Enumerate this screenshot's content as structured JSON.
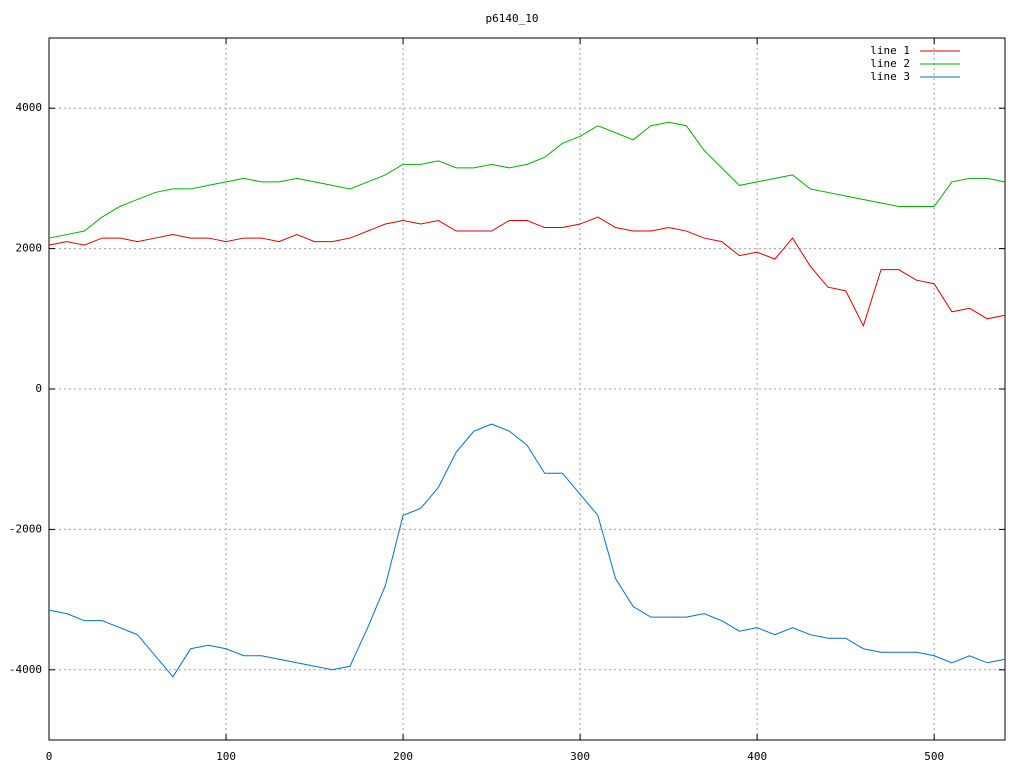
{
  "chart_data": {
    "type": "line",
    "title": "p6140_10",
    "x": [
      0,
      10,
      20,
      30,
      40,
      50,
      60,
      70,
      80,
      90,
      100,
      110,
      120,
      130,
      140,
      150,
      160,
      170,
      180,
      190,
      200,
      210,
      220,
      230,
      240,
      250,
      260,
      270,
      280,
      290,
      300,
      310,
      320,
      330,
      340,
      350,
      360,
      370,
      380,
      390,
      400,
      410,
      420,
      430,
      440,
      450,
      460,
      470,
      480,
      490,
      500,
      510,
      520,
      530,
      540
    ],
    "series": [
      {
        "name": "line 1",
        "color": "#e00000",
        "values": [
          2050,
          2100,
          2050,
          2150,
          2150,
          2100,
          2150,
          2200,
          2150,
          2150,
          2100,
          2150,
          2150,
          2100,
          2200,
          2100,
          2100,
          2150,
          2250,
          2350,
          2400,
          2350,
          2400,
          2250,
          2250,
          2250,
          2400,
          2400,
          2300,
          2300,
          2350,
          2450,
          2300,
          2250,
          2250,
          2300,
          2250,
          2150,
          2100,
          1900,
          1950,
          1850,
          2150,
          1750,
          1450,
          1400,
          900,
          1700,
          1700,
          1550,
          1500,
          1100,
          1150,
          1000,
          1050
        ]
      },
      {
        "name": "line 2",
        "color": "#00b000",
        "values": [
          2150,
          2200,
          2250,
          2450,
          2600,
          2700,
          2800,
          2850,
          2850,
          2900,
          2950,
          3000,
          2950,
          2950,
          3000,
          2950,
          2900,
          2850,
          2950,
          3050,
          3200,
          3200,
          3250,
          3150,
          3150,
          3200,
          3150,
          3200,
          3300,
          3500,
          3600,
          3750,
          3650,
          3550,
          3750,
          3800,
          3750,
          3400,
          3150,
          2900,
          2950,
          3000,
          3050,
          2850,
          2800,
          2750,
          2700,
          2650,
          2600,
          2600,
          2600,
          2950,
          3000,
          3000,
          2950
        ]
      },
      {
        "name": "line 3",
        "color": "#0070d0",
        "values": [
          -3150,
          -3200,
          -3300,
          -3300,
          -3400,
          -3500,
          -3800,
          -4100,
          -3700,
          -3650,
          -3700,
          -3800,
          -3800,
          -3850,
          -3900,
          -3950,
          -4000,
          -3950,
          -3400,
          -2800,
          -1800,
          -1700,
          -1400,
          -900,
          -600,
          -500,
          -600,
          -800,
          -1200,
          -1200,
          -1500,
          -1800,
          -2700,
          -3100,
          -3250,
          -3250,
          -3250,
          -3200,
          -3300,
          -3450,
          -3400,
          -3500,
          -3400,
          -3500,
          -3550,
          -3550,
          -3700,
          -3750,
          -3750,
          -3750,
          -3800,
          -3900,
          -3800,
          -3900,
          -3850
        ]
      }
    ],
    "xlim": [
      0,
      540
    ],
    "ylim": [
      -5000,
      5000
    ],
    "xticks": [
      0,
      100,
      200,
      300,
      400,
      500
    ],
    "yticks": [
      -4000,
      -2000,
      0,
      2000,
      4000
    ],
    "grid": true,
    "legend": "top-right"
  }
}
